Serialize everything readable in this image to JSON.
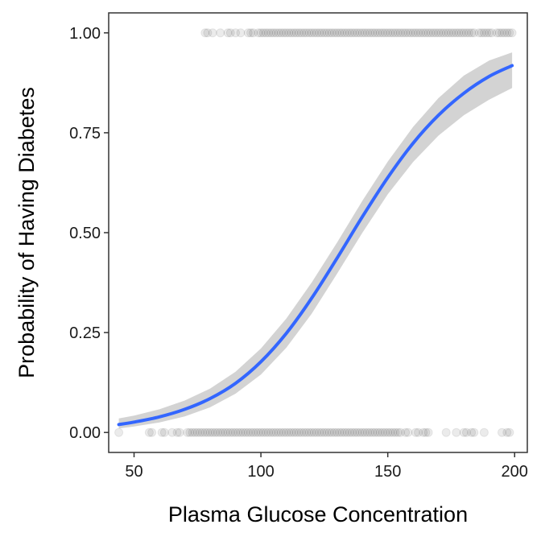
{
  "chart_data": {
    "type": "scatter",
    "title": "",
    "xlabel": "Plasma Glucose Concentration",
    "ylabel": "Probability of Having Diabetes",
    "xlim": [
      40,
      205
    ],
    "ylim": [
      -0.05,
      1.05
    ],
    "x_ticks": [
      50,
      100,
      150,
      200
    ],
    "y_ticks": [
      0.0,
      0.25,
      0.5,
      0.75,
      1.0
    ],
    "x_tick_labels": [
      "50",
      "100",
      "150",
      "200"
    ],
    "y_tick_labels": [
      "0.00",
      "0.25",
      "0.50",
      "0.75",
      "1.00"
    ],
    "grid": false,
    "legend": "none",
    "colors": {
      "points": "#000000",
      "curve": "#3366FF",
      "band": "#D3D3D3",
      "frame": "#333333"
    },
    "series": [
      {
        "type": "scatter",
        "opacity": 0.08,
        "x_at_0": [
          44,
          56,
          57,
          61,
          62,
          65,
          67,
          68,
          71,
          72,
          73,
          74,
          75,
          76,
          77,
          78,
          79,
          80,
          81,
          82,
          83,
          84,
          85,
          86,
          87,
          88,
          89,
          90,
          91,
          92,
          93,
          94,
          95,
          96,
          97,
          98,
          99,
          100,
          101,
          102,
          103,
          104,
          105,
          106,
          107,
          108,
          109,
          110,
          111,
          112,
          113,
          114,
          115,
          116,
          117,
          118,
          119,
          120,
          121,
          122,
          123,
          124,
          125,
          126,
          127,
          128,
          129,
          130,
          131,
          132,
          133,
          134,
          135,
          136,
          137,
          138,
          139,
          140,
          141,
          142,
          143,
          144,
          145,
          146,
          147,
          148,
          149,
          150,
          151,
          152,
          153,
          154,
          155,
          157,
          158,
          161,
          162,
          164,
          165,
          166,
          173,
          177,
          180,
          181,
          183,
          184,
          188,
          195,
          197,
          198
        ],
        "x_at_1": [
          78,
          79,
          81,
          84,
          87,
          88,
          90,
          92,
          95,
          96,
          97,
          99,
          100,
          101,
          102,
          103,
          104,
          105,
          106,
          107,
          108,
          109,
          110,
          111,
          112,
          113,
          114,
          115,
          116,
          117,
          118,
          119,
          120,
          121,
          122,
          123,
          124,
          125,
          126,
          127,
          128,
          129,
          130,
          131,
          132,
          133,
          134,
          135,
          136,
          137,
          138,
          139,
          140,
          141,
          142,
          143,
          144,
          145,
          146,
          147,
          148,
          149,
          150,
          151,
          152,
          153,
          154,
          155,
          156,
          157,
          158,
          159,
          160,
          161,
          162,
          163,
          164,
          165,
          166,
          167,
          168,
          169,
          170,
          171,
          172,
          173,
          174,
          175,
          176,
          177,
          178,
          179,
          180,
          181,
          182,
          183,
          184,
          186,
          187,
          188,
          189,
          190,
          191,
          193,
          194,
          195,
          196,
          197,
          198,
          199
        ]
      },
      {
        "type": "line",
        "x": [
          44,
          50,
          60,
          70,
          80,
          90,
          100,
          110,
          120,
          130,
          140,
          150,
          160,
          170,
          180,
          190,
          199
        ],
        "y": [
          0.02,
          0.026,
          0.039,
          0.058,
          0.085,
          0.123,
          0.177,
          0.248,
          0.336,
          0.436,
          0.54,
          0.638,
          0.724,
          0.794,
          0.849,
          0.891,
          0.918
        ],
        "ci_low": [
          0.01,
          0.015,
          0.025,
          0.04,
          0.063,
          0.097,
          0.145,
          0.212,
          0.297,
          0.397,
          0.5,
          0.596,
          0.677,
          0.743,
          0.794,
          0.833,
          0.862
        ],
        "ci_high": [
          0.035,
          0.042,
          0.058,
          0.08,
          0.11,
          0.152,
          0.21,
          0.285,
          0.375,
          0.475,
          0.58,
          0.678,
          0.765,
          0.837,
          0.893,
          0.931,
          0.951
        ]
      }
    ]
  }
}
